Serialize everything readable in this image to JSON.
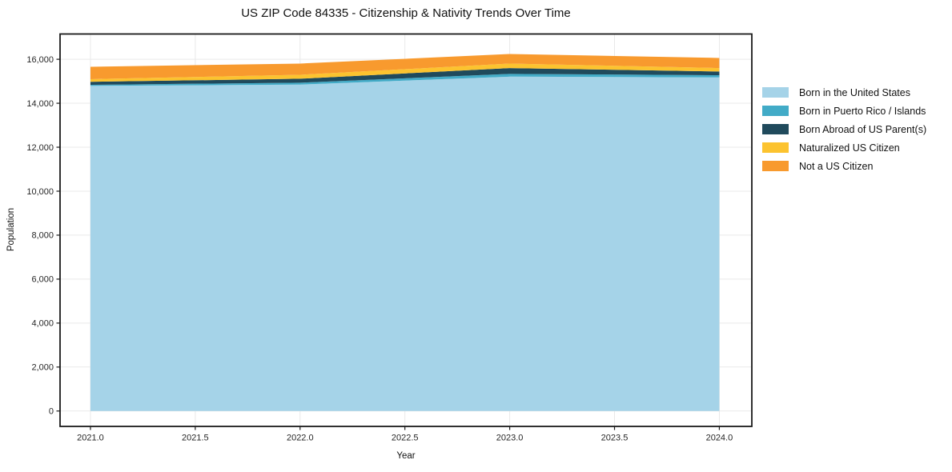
{
  "chart_data": {
    "type": "area",
    "stacked": true,
    "title": "US ZIP Code 84335 - Citizenship & Nativity Trends Over Time",
    "xlabel": "Year",
    "ylabel": "Population",
    "x": [
      2021,
      2022,
      2023,
      2024
    ],
    "series": [
      {
        "name": "Born in the United States",
        "color": "#A5D3E8",
        "values": [
          14790,
          14850,
          15210,
          15175
        ]
      },
      {
        "name": "Born in Puerto Rico / Islands",
        "color": "#42ABC7",
        "values": [
          50,
          85,
          125,
          100
        ]
      },
      {
        "name": "Born Abroad of US Parent(s)",
        "color": "#204A5C",
        "values": [
          135,
          180,
          265,
          170
        ]
      },
      {
        "name": "Naturalized US Citizen",
        "color": "#FCC32F",
        "values": [
          120,
          180,
          205,
          155
        ]
      },
      {
        "name": "Not a US Citizen",
        "color": "#F89A2E",
        "values": [
          565,
          510,
          435,
          460
        ]
      }
    ],
    "totals": [
      15660,
      15805,
      16240,
      16060
    ],
    "xticks": {
      "values": [
        2021.0,
        2021.5,
        2022.0,
        2022.5,
        2023.0,
        2023.5,
        2024.0
      ],
      "labels": [
        "2021.0",
        "2021.5",
        "2022.0",
        "2022.5",
        "2023.0",
        "2023.5",
        "2024.0"
      ]
    },
    "yticks": {
      "values": [
        0,
        2000,
        4000,
        6000,
        8000,
        10000,
        12000,
        14000,
        16000
      ],
      "labels": [
        "0",
        "2,000",
        "4,000",
        "6,000",
        "8,000",
        "10,000",
        "12,000",
        "14,000",
        "16,000"
      ]
    },
    "xlim": [
      2020.855,
      2024.155
    ],
    "ylim": [
      -700,
      17150
    ],
    "grid": true,
    "legend_position": "right-outside"
  },
  "styles": {
    "grid_color": "#E9E9E9",
    "spine_color": "#1a1a1a",
    "tick_text_color": "#262626",
    "background": "#ffffff"
  }
}
